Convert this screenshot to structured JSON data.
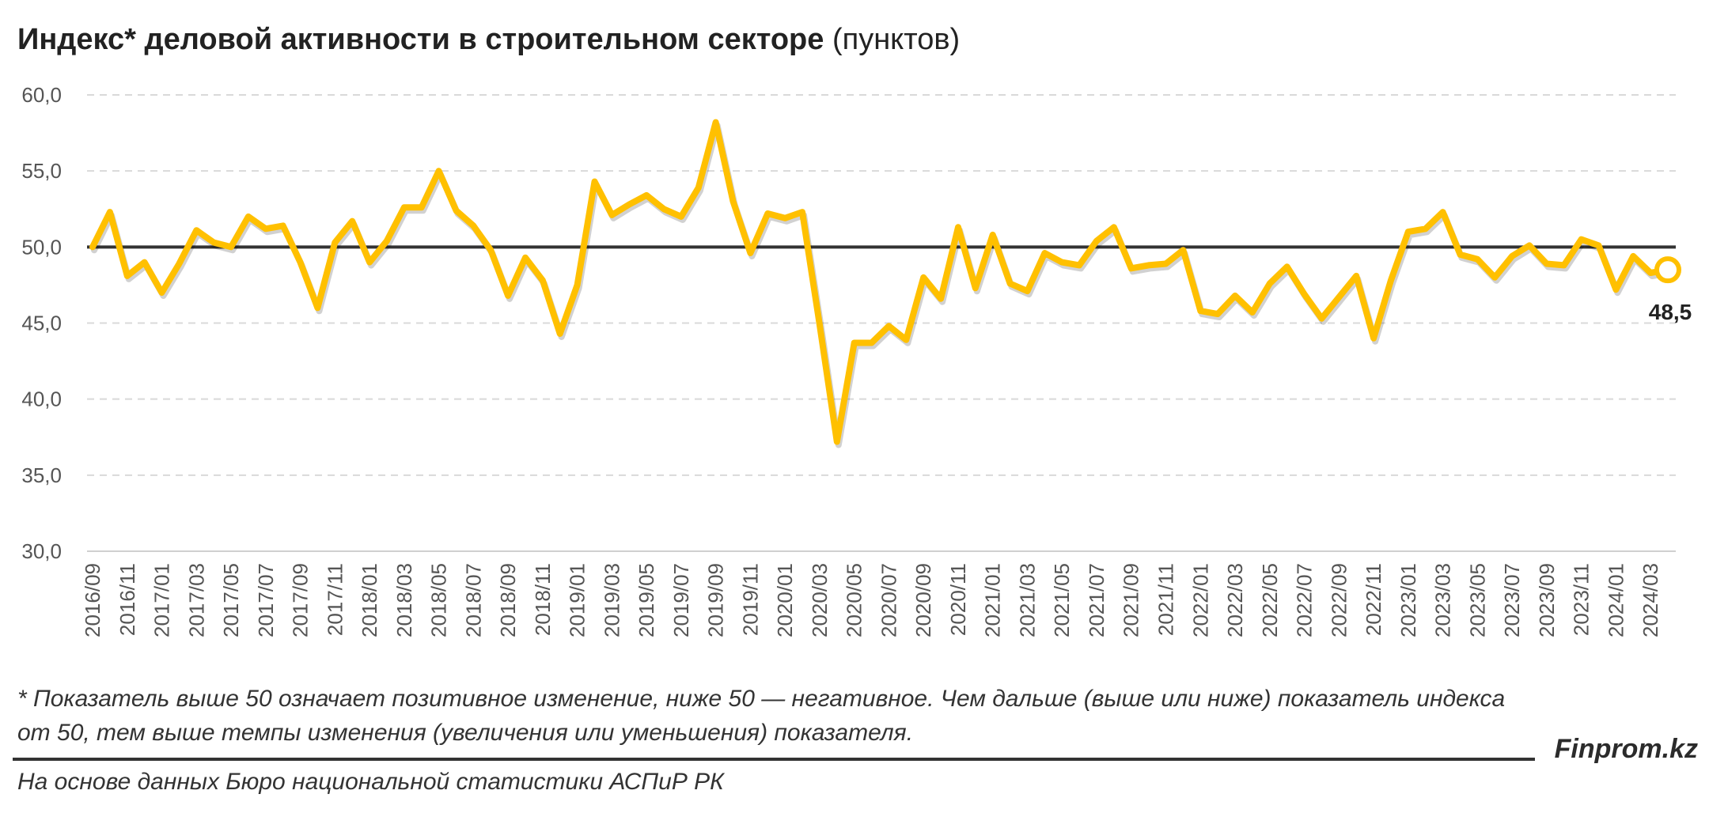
{
  "header": {
    "title_bold": "Индекс* деловой активности в строительном секторе",
    "title_unit": "(пунктов)"
  },
  "chart_data": {
    "type": "line",
    "title": "Индекс* деловой активности в строительном секторе (пунктов)",
    "xlabel": "",
    "ylabel": "",
    "ylim": [
      30,
      60
    ],
    "yticks": [
      "60,0",
      "55,0",
      "50,0",
      "45,0",
      "40,0",
      "35,0",
      "30,0"
    ],
    "ytick_values": [
      60,
      55,
      50,
      45,
      40,
      35,
      30
    ],
    "reference_line": 50,
    "grid": "horizontal dashed",
    "line_color": "#FFC000",
    "reference_color": "#333333",
    "last_value_label": "48,5",
    "x_tick_labels": [
      "2016/09",
      "2016/11",
      "2017/01",
      "2017/03",
      "2017/05",
      "2017/07",
      "2017/09",
      "2017/11",
      "2018/01",
      "2018/03",
      "2018/05",
      "2018/07",
      "2018/09",
      "2018/11",
      "2019/01",
      "2019/03",
      "2019/05",
      "2019/07",
      "2019/09",
      "2019/11",
      "2020/01",
      "2020/03",
      "2020/05",
      "2020/07",
      "2020/09",
      "2020/11",
      "2021/01",
      "2021/03",
      "2021/05",
      "2021/07",
      "2021/09",
      "2021/11",
      "2022/01",
      "2022/03",
      "2022/05",
      "2022/07",
      "2022/09",
      "2022/11",
      "2023/01",
      "2023/03",
      "2023/05",
      "2023/07",
      "2023/09",
      "2023/11",
      "2024/01",
      "2024/03"
    ],
    "x": [
      "2016/09",
      "2016/10",
      "2016/11",
      "2016/12",
      "2017/01",
      "2017/02",
      "2017/03",
      "2017/04",
      "2017/05",
      "2017/06",
      "2017/07",
      "2017/08",
      "2017/09",
      "2017/10",
      "2017/11",
      "2017/12",
      "2018/01",
      "2018/02",
      "2018/03",
      "2018/04",
      "2018/05",
      "2018/06",
      "2018/07",
      "2018/08",
      "2018/09",
      "2018/10",
      "2018/11",
      "2018/12",
      "2019/01",
      "2019/02",
      "2019/03",
      "2019/04",
      "2019/05",
      "2019/06",
      "2019/07",
      "2019/08",
      "2019/09",
      "2019/10",
      "2019/11",
      "2019/12",
      "2020/01",
      "2020/02",
      "2020/03",
      "2020/04",
      "2020/05",
      "2020/06",
      "2020/07",
      "2020/08",
      "2020/09",
      "2020/10",
      "2020/11",
      "2020/12",
      "2021/01",
      "2021/02",
      "2021/03",
      "2021/04",
      "2021/05",
      "2021/06",
      "2021/07",
      "2021/08",
      "2021/09",
      "2021/10",
      "2021/11",
      "2021/12",
      "2022/01",
      "2022/02",
      "2022/03",
      "2022/04",
      "2022/05",
      "2022/06",
      "2022/07",
      "2022/08",
      "2022/09",
      "2022/10",
      "2022/11",
      "2022/12",
      "2023/01",
      "2023/02",
      "2023/03",
      "2023/04",
      "2023/05",
      "2023/06",
      "2023/07",
      "2023/08",
      "2023/09",
      "2023/10",
      "2023/11",
      "2023/12",
      "2024/01",
      "2024/02",
      "2024/03",
      "2024/04"
    ],
    "values": [
      50.0,
      52.3,
      48.1,
      49.0,
      47.0,
      48.9,
      51.1,
      50.3,
      50.0,
      52.0,
      51.2,
      51.4,
      49.0,
      46.0,
      50.3,
      51.7,
      49.0,
      50.4,
      52.6,
      52.6,
      55.0,
      52.4,
      51.4,
      49.8,
      46.8,
      49.3,
      47.8,
      44.3,
      47.5,
      54.3,
      52.1,
      52.8,
      53.4,
      52.5,
      52.0,
      53.9,
      58.2,
      53.0,
      49.6,
      52.2,
      51.9,
      52.3,
      44.9,
      37.2,
      43.7,
      43.7,
      44.8,
      43.9,
      48.0,
      46.6,
      51.3,
      47.3,
      50.8,
      47.6,
      47.1,
      49.6,
      49.0,
      48.8,
      50.4,
      51.3,
      48.6,
      48.8,
      48.9,
      49.8,
      45.8,
      45.6,
      46.8,
      45.7,
      47.6,
      48.7,
      46.9,
      45.3,
      46.7,
      48.1,
      44.0,
      47.8,
      51.0,
      51.2,
      52.3,
      49.5,
      49.2,
      48.0,
      49.4,
      50.1,
      48.9,
      48.8,
      50.5,
      50.1,
      47.2,
      49.4,
      48.3,
      48.5
    ]
  },
  "footnote": {
    "line1": "* Показатель выше 50 означает позитивное изменение, ниже 50 — негативное. Чем дальше (выше или ниже) показатель индекса",
    "line2": "от 50, тем выше темпы изменения (увеличения или уменьшения) показателя."
  },
  "brand": "Finprom.kz",
  "source": "На основе данных Бюро национальной статистики АСПиР РК"
}
